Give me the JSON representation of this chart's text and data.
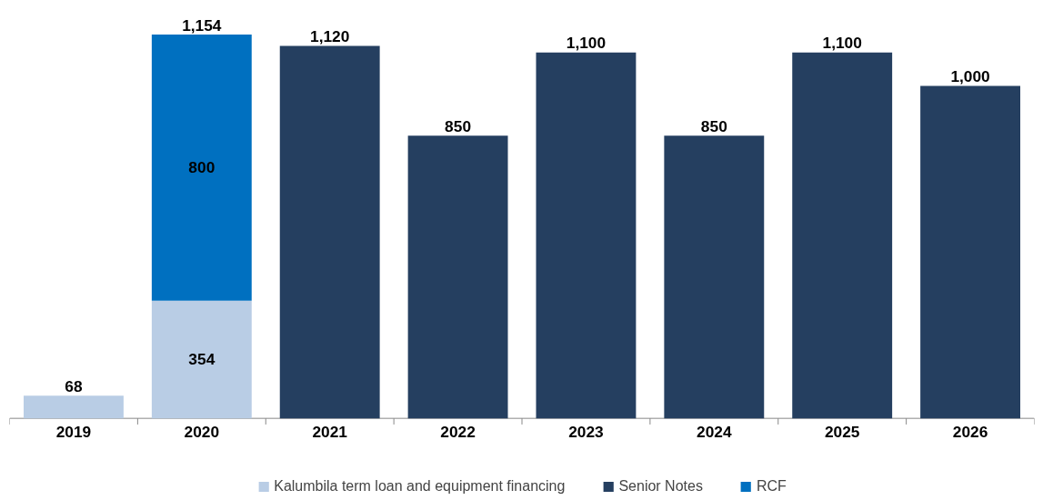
{
  "chart_data": {
    "type": "bar",
    "stacked": true,
    "categories": [
      "2019",
      "2020",
      "2021",
      "2022",
      "2023",
      "2024",
      "2025",
      "2026"
    ],
    "series": [
      {
        "name": "Kalumbila term loan and equipment financing",
        "color": "#b9cde5",
        "values": [
          68,
          354,
          null,
          null,
          null,
          null,
          null,
          null
        ],
        "value_labels": [
          "68",
          "354",
          null,
          null,
          null,
          null,
          null,
          null
        ]
      },
      {
        "name": "Senior Notes",
        "color": "#253f60",
        "values": [
          null,
          null,
          1120,
          850,
          1100,
          850,
          1100,
          1000
        ],
        "value_labels": [
          null,
          null,
          "1,120",
          "850",
          "1,100",
          "850",
          "1,100",
          "1,000"
        ]
      },
      {
        "name": "RCF",
        "color": "#0070c0",
        "values": [
          null,
          800,
          null,
          null,
          null,
          null,
          null,
          null
        ],
        "value_labels": [
          null,
          "800",
          null,
          null,
          null,
          null,
          null,
          null
        ]
      }
    ],
    "totals": [
      null,
      "1,154",
      null,
      null,
      null,
      null,
      null,
      null
    ],
    "legend": "bottom",
    "grid": false
  }
}
